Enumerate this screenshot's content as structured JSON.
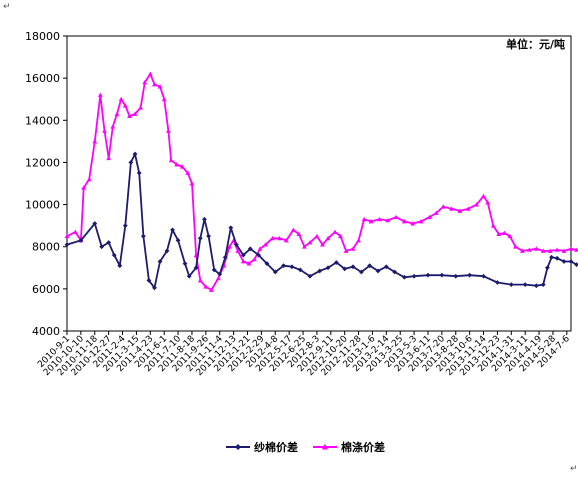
{
  "corner_mark_left": "↵",
  "corner_mark_right": "↵",
  "colors": {
    "yarn": "#1c1c6e",
    "polyester": "#ff00ff",
    "axis": "#000000"
  },
  "chart_data": {
    "type": "line",
    "unit_label": "单位：元/吨",
    "ylim": [
      4000,
      18000
    ],
    "y_ticks": [
      4000,
      6000,
      8000,
      10000,
      12000,
      14000,
      16000,
      18000
    ],
    "x_tick_labels": [
      "2010-9-1",
      "2010-10-10",
      "2010-11-18",
      "2010-12-27",
      "2011-2-4",
      "2011-3-15",
      "2011-4-23",
      "2011-6-1",
      "2011-7-10",
      "2011-8-18",
      "2011-9-26",
      "2011-11-4",
      "2011-12-13",
      "2012-1-21",
      "2012-2-29",
      "2012-4-8",
      "2012-5-17",
      "2012-6-25",
      "2012-8-3",
      "2012-9-11",
      "2012-10-20",
      "2012-11-28",
      "2013-1-6",
      "2013-2-14",
      "2013-3-25",
      "2013-5-3",
      "2013-6-11",
      "2013-7-20",
      "2013-8-28",
      "2013-10-6",
      "2013-11-14",
      "2013-12-23",
      "2014-1-31",
      "2014-3-11",
      "2014-4-19",
      "2014-5-28",
      "2014-7-6"
    ],
    "series": [
      {
        "name": "纱棉价差",
        "marker": "diamond",
        "values": [
          [
            0,
            8100
          ],
          [
            1,
            8300
          ],
          [
            2,
            9100
          ],
          [
            2.5,
            8000
          ],
          [
            3,
            8200
          ],
          [
            3.4,
            7600
          ],
          [
            3.8,
            7100
          ],
          [
            4.2,
            9000
          ],
          [
            4.6,
            12000
          ],
          [
            4.9,
            12400
          ],
          [
            5.2,
            11500
          ],
          [
            5.5,
            8500
          ],
          [
            5.9,
            6400
          ],
          [
            6.3,
            6050
          ],
          [
            6.7,
            7300
          ],
          [
            7.2,
            7800
          ],
          [
            7.6,
            8800
          ],
          [
            8,
            8300
          ],
          [
            8.5,
            7200
          ],
          [
            8.8,
            6600
          ],
          [
            9.3,
            7000
          ],
          [
            9.6,
            8400
          ],
          [
            9.9,
            9300
          ],
          [
            10.2,
            8500
          ],
          [
            10.6,
            6900
          ],
          [
            11,
            6700
          ],
          [
            11.4,
            7500
          ],
          [
            11.8,
            8900
          ],
          [
            12.2,
            8100
          ],
          [
            12.7,
            7600
          ],
          [
            13.2,
            7900
          ],
          [
            13.8,
            7600
          ],
          [
            14.4,
            7200
          ],
          [
            15,
            6800
          ],
          [
            15.6,
            7100
          ],
          [
            16.2,
            7050
          ],
          [
            16.8,
            6900
          ],
          [
            17.5,
            6600
          ],
          [
            18.2,
            6850
          ],
          [
            18.8,
            7000
          ],
          [
            19.4,
            7250
          ],
          [
            20,
            6950
          ],
          [
            20.6,
            7050
          ],
          [
            21.2,
            6800
          ],
          [
            21.8,
            7100
          ],
          [
            22.4,
            6850
          ],
          [
            23,
            7050
          ],
          [
            23.6,
            6800
          ],
          [
            24.3,
            6550
          ],
          [
            25,
            6600
          ],
          [
            26,
            6650
          ],
          [
            27,
            6650
          ],
          [
            28,
            6600
          ],
          [
            29,
            6650
          ],
          [
            30,
            6600
          ],
          [
            31,
            6300
          ],
          [
            32,
            6200
          ],
          [
            33,
            6200
          ],
          [
            33.8,
            6150
          ],
          [
            34.3,
            6200
          ],
          [
            34.6,
            7000
          ],
          [
            34.9,
            7500
          ],
          [
            35.3,
            7450
          ],
          [
            35.8,
            7300
          ],
          [
            36.3,
            7300
          ],
          [
            36.7,
            7150
          ]
        ]
      },
      {
        "name": "棉涤价差",
        "marker": "triangle",
        "values": [
          [
            0,
            8500
          ],
          [
            0.6,
            8700
          ],
          [
            1,
            8300
          ],
          [
            1.2,
            10800
          ],
          [
            1.6,
            11200
          ],
          [
            2,
            13000
          ],
          [
            2.4,
            15200
          ],
          [
            2.7,
            13500
          ],
          [
            3,
            12200
          ],
          [
            3.3,
            13700
          ],
          [
            3.6,
            14300
          ],
          [
            3.9,
            15000
          ],
          [
            4.2,
            14700
          ],
          [
            4.5,
            14200
          ],
          [
            4.9,
            14300
          ],
          [
            5.3,
            14600
          ],
          [
            5.6,
            15800
          ],
          [
            6,
            16200
          ],
          [
            6.3,
            15700
          ],
          [
            6.7,
            15600
          ],
          [
            7,
            15000
          ],
          [
            7.3,
            13500
          ],
          [
            7.5,
            12100
          ],
          [
            7.9,
            11900
          ],
          [
            8.3,
            11800
          ],
          [
            8.7,
            11500
          ],
          [
            9,
            11000
          ],
          [
            9.3,
            7600
          ],
          [
            9.6,
            6400
          ],
          [
            10,
            6100
          ],
          [
            10.4,
            5950
          ],
          [
            10.9,
            6500
          ],
          [
            11.3,
            7100
          ],
          [
            11.7,
            8000
          ],
          [
            12,
            8300
          ],
          [
            12.3,
            7800
          ],
          [
            12.7,
            7300
          ],
          [
            13.1,
            7200
          ],
          [
            13.5,
            7400
          ],
          [
            13.9,
            7900
          ],
          [
            14.3,
            8100
          ],
          [
            14.8,
            8400
          ],
          [
            15.3,
            8400
          ],
          [
            15.8,
            8300
          ],
          [
            16.3,
            8800
          ],
          [
            16.7,
            8600
          ],
          [
            17.1,
            8000
          ],
          [
            17.5,
            8200
          ],
          [
            18,
            8500
          ],
          [
            18.4,
            8100
          ],
          [
            18.8,
            8400
          ],
          [
            19.3,
            8700
          ],
          [
            19.7,
            8500
          ],
          [
            20.1,
            7800
          ],
          [
            20.6,
            7900
          ],
          [
            21,
            8300
          ],
          [
            21.4,
            9300
          ],
          [
            21.9,
            9200
          ],
          [
            22.5,
            9300
          ],
          [
            23.1,
            9250
          ],
          [
            23.7,
            9400
          ],
          [
            24.3,
            9200
          ],
          [
            24.9,
            9100
          ],
          [
            25.5,
            9200
          ],
          [
            26.1,
            9400
          ],
          [
            26.6,
            9600
          ],
          [
            27.1,
            9900
          ],
          [
            27.7,
            9800
          ],
          [
            28.3,
            9700
          ],
          [
            28.9,
            9800
          ],
          [
            29.5,
            10000
          ],
          [
            30,
            10400
          ],
          [
            30.3,
            10100
          ],
          [
            30.7,
            9000
          ],
          [
            31.1,
            8600
          ],
          [
            31.5,
            8650
          ],
          [
            31.9,
            8500
          ],
          [
            32.3,
            8000
          ],
          [
            32.8,
            7800
          ],
          [
            33.3,
            7850
          ],
          [
            33.8,
            7900
          ],
          [
            34.3,
            7800
          ],
          [
            34.8,
            7800
          ],
          [
            35.3,
            7850
          ],
          [
            35.8,
            7800
          ],
          [
            36.3,
            7900
          ],
          [
            36.7,
            7850
          ]
        ]
      }
    ]
  }
}
